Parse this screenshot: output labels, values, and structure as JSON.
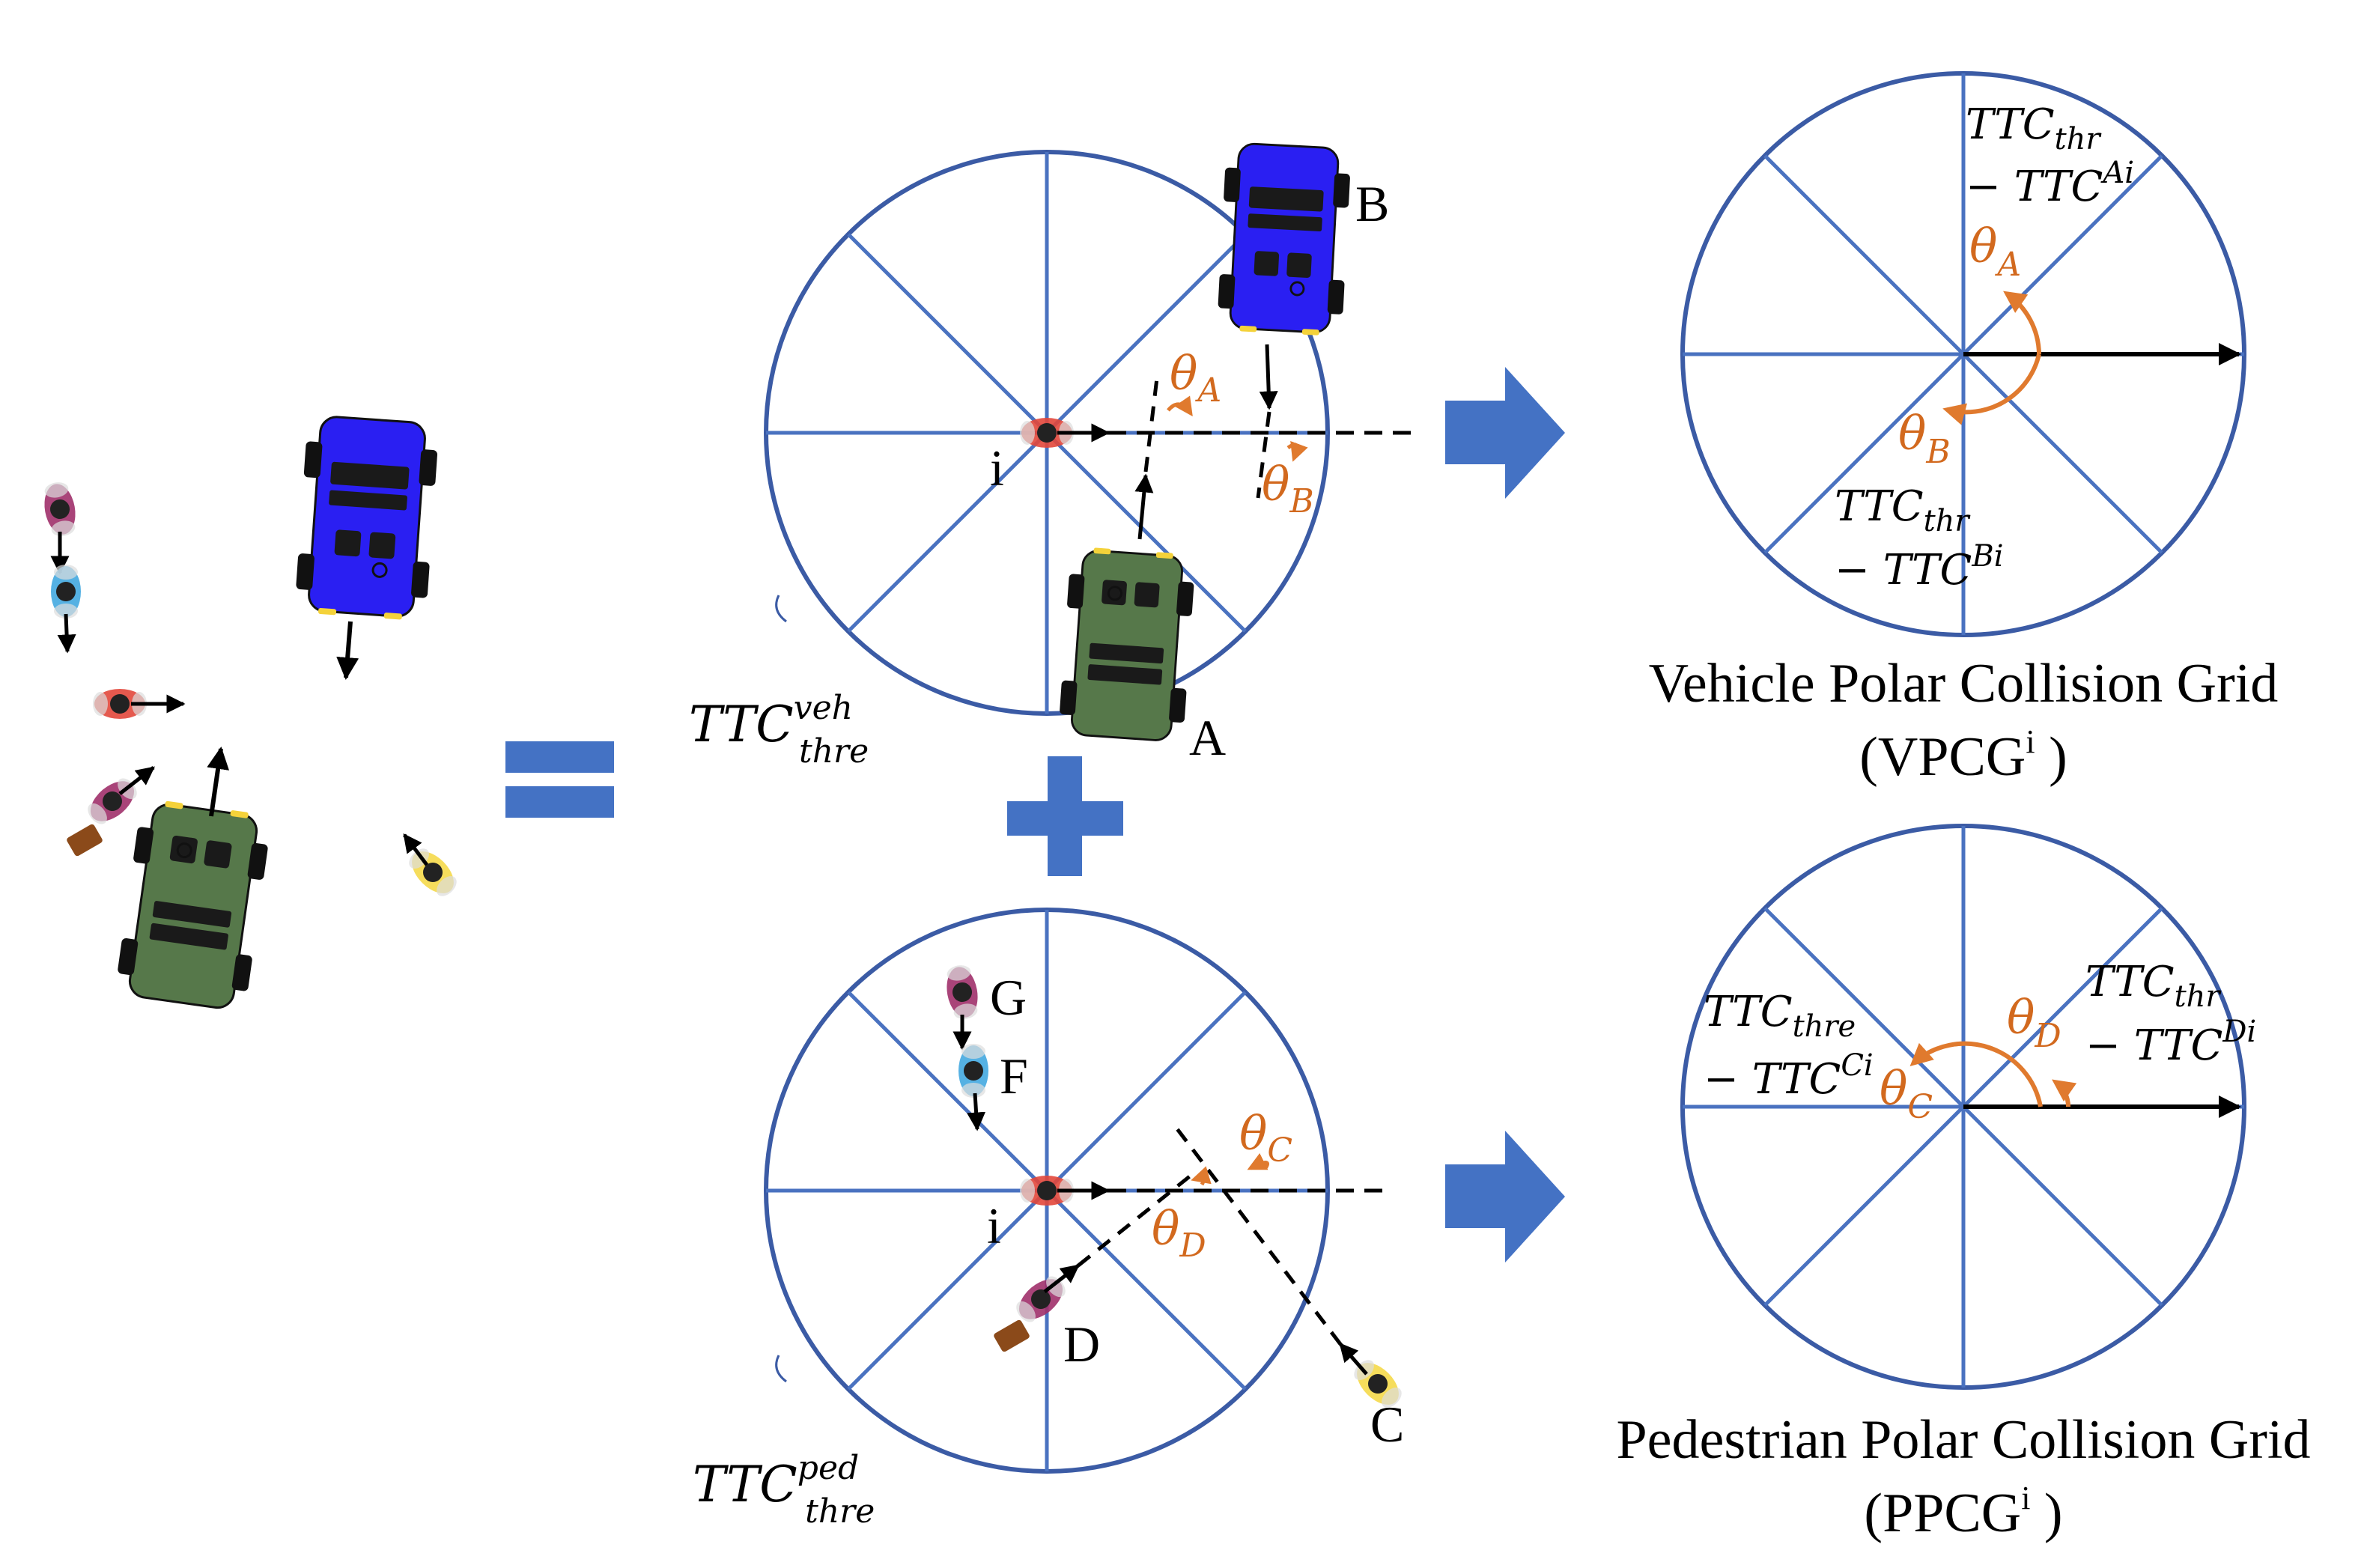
{
  "colors": {
    "grid_stroke": "#3B5BA5",
    "big_arrow": "#4472C4",
    "theta": "#D2691E",
    "vehicle_blue": "#2A1FF2",
    "vehicle_green": "#56784A",
    "ego": "#E2473B"
  },
  "left_scene": {
    "equals_symbol": "="
  },
  "plus_symbol": "+",
  "vehicle_grid_input": {
    "ego_label": "i",
    "agent_a_label": "A",
    "agent_b_label": "B",
    "theta_a": "θ",
    "theta_a_sub": "A",
    "theta_b": "θ",
    "theta_b_sub": "B",
    "ttc_main": "TTC",
    "ttc_sup": "veh",
    "ttc_sub": "thre"
  },
  "pedestrian_grid_input": {
    "ego_label": "i",
    "agent_c_label": "C",
    "agent_d_label": "D",
    "agent_f_label": "F",
    "agent_g_label": "G",
    "theta_c": "θ",
    "theta_c_sub": "C",
    "theta_d": "θ",
    "theta_d_sub": "D",
    "ttc_main": "TTC",
    "ttc_sup": "ped",
    "ttc_sub": "thre"
  },
  "vpcg": {
    "title": "Vehicle Polar Collision Grid",
    "abbr_prefix": "(VPCG",
    "abbr_sup": "i",
    "abbr_suffix": " )",
    "ttc_a_line1_main": "TTC",
    "ttc_a_line1_sub": "thr",
    "ttc_a_line2_main": "− TTC",
    "ttc_a_line2_sup": "Ai",
    "ttc_b_line1_main": "TTC",
    "ttc_b_line1_sub": "thr",
    "ttc_b_line2_main": "− TTC",
    "ttc_b_line2_sup": "Bi",
    "theta_a": "θ",
    "theta_a_sub": "A",
    "theta_b": "θ",
    "theta_b_sub": "B"
  },
  "ppcg": {
    "title": "Pedestrian Polar Collision Grid",
    "abbr_prefix": "(PPCG",
    "abbr_sup": "i",
    "abbr_suffix": " )",
    "ttc_c_line1_main": "TTC",
    "ttc_c_line1_sub": "thre",
    "ttc_c_line2_main": "− TTC",
    "ttc_c_line2_sup": "Ci",
    "ttc_d_line1_main": "TTC",
    "ttc_d_line1_sub": "thr",
    "ttc_d_line2_main": "− TTC",
    "ttc_d_line2_sup": "Di",
    "theta_c": "θ",
    "theta_c_sub": "C",
    "theta_d": "θ",
    "theta_d_sub": "D"
  }
}
